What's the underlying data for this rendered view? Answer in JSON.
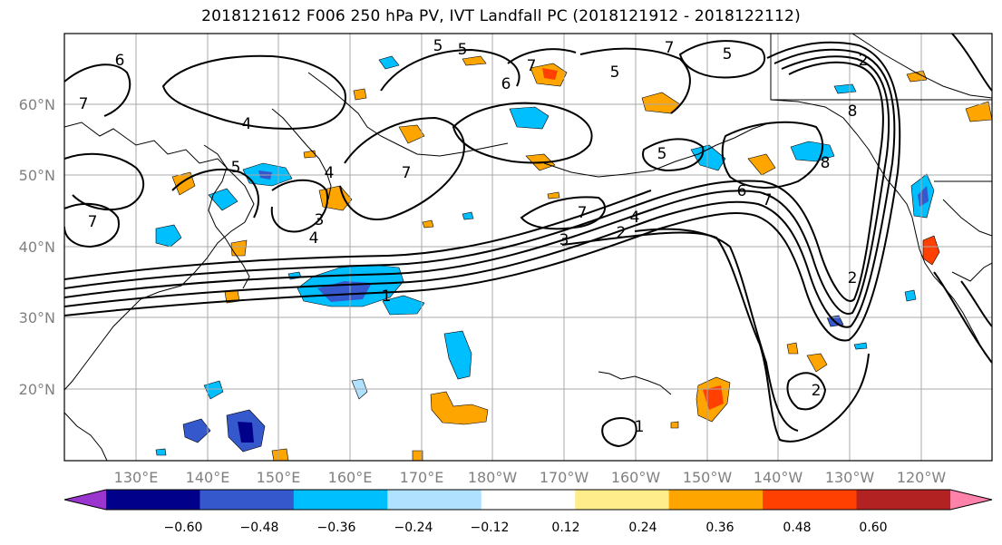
{
  "title": "2018121612 F006 250 hPa PV, IVT Landfall PC (2018121912 - 2018122112)",
  "map": {
    "lat_labels": [
      "60°N",
      "50°N",
      "40°N",
      "30°N",
      "20°N"
    ],
    "lon_labels": [
      "130°E",
      "140°E",
      "150°E",
      "160°E",
      "170°E",
      "180°W",
      "170°W",
      "160°W",
      "150°W",
      "140°W",
      "130°W",
      "120°W"
    ],
    "axis_label_color": "#808080",
    "contour_labels": [
      {
        "text": "6"
      },
      {
        "text": "7"
      },
      {
        "text": "4"
      },
      {
        "text": "5"
      },
      {
        "text": "4"
      },
      {
        "text": "3"
      },
      {
        "text": "4"
      },
      {
        "text": "7"
      },
      {
        "text": "1"
      },
      {
        "text": "7"
      },
      {
        "text": "4"
      },
      {
        "text": "3"
      },
      {
        "text": "2"
      },
      {
        "text": "6"
      },
      {
        "text": "7"
      },
      {
        "text": "5"
      },
      {
        "text": "8"
      },
      {
        "text": "7"
      },
      {
        "text": "8"
      },
      {
        "text": "2"
      },
      {
        "text": "5"
      },
      {
        "text": "7"
      },
      {
        "text": "5"
      },
      {
        "text": "6"
      },
      {
        "text": "7"
      },
      {
        "text": "5"
      },
      {
        "text": "2"
      },
      {
        "text": "2"
      },
      {
        "text": "1"
      },
      {
        "text": "5"
      }
    ]
  },
  "colorbar": {
    "tick_labels": [
      "−0.60",
      "−0.48",
      "−0.36",
      "−0.24",
      "−0.12",
      "0.12",
      "0.24",
      "0.36",
      "0.48",
      "0.60"
    ],
    "colors": [
      "#9a35d0",
      "#00008b",
      "#3558cc",
      "#00bfff",
      "#b0e2ff",
      "#ffffff",
      "#ffec8b",
      "#ffa500",
      "#ff4000",
      "#b22222",
      "#ff82ab"
    ]
  }
}
